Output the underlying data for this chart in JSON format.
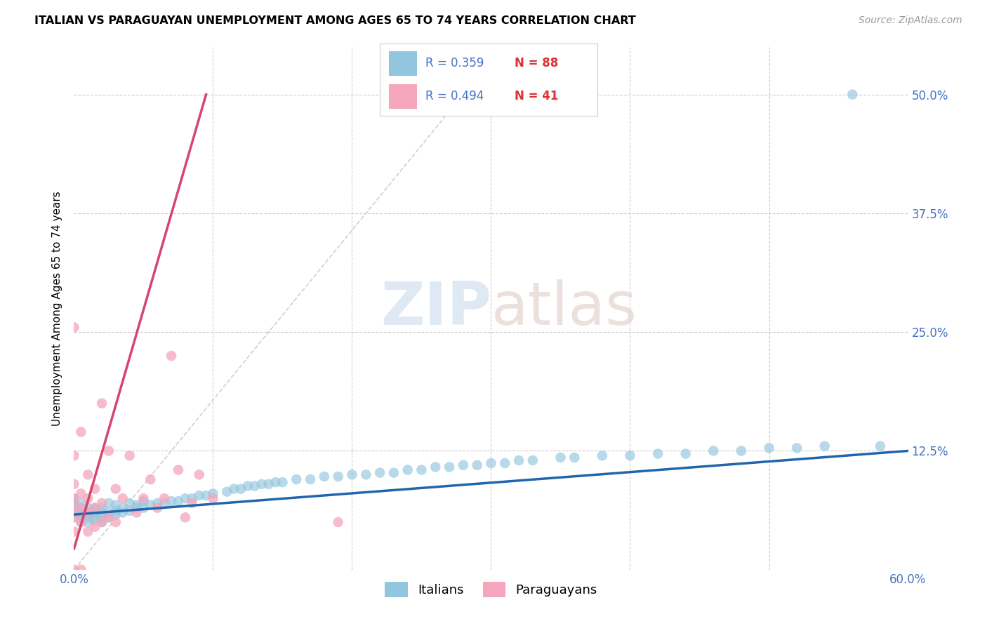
{
  "title": "ITALIAN VS PARAGUAYAN UNEMPLOYMENT AMONG AGES 65 TO 74 YEARS CORRELATION CHART",
  "source": "Source: ZipAtlas.com",
  "ylabel": "Unemployment Among Ages 65 to 74 years",
  "xlim": [
    0.0,
    0.6
  ],
  "ylim": [
    0.0,
    0.55
  ],
  "xticks": [
    0.0,
    0.1,
    0.2,
    0.3,
    0.4,
    0.5,
    0.6
  ],
  "xtick_labels": [
    "0.0%",
    "",
    "",
    "",
    "",
    "",
    "60.0%"
  ],
  "right_ytick_positions": [
    0.0,
    0.125,
    0.25,
    0.375,
    0.5
  ],
  "right_ytick_labels": [
    "",
    "12.5%",
    "25.0%",
    "37.5%",
    "50.0%"
  ],
  "italian_R": "0.359",
  "italian_N": "88",
  "paraguayan_R": "0.494",
  "paraguayan_N": "41",
  "italian_color": "#92c5de",
  "paraguayan_color": "#f4a6bc",
  "italian_line_color": "#2166ac",
  "paraguayan_line_color": "#d6456e",
  "legend_label_italian": "Italians",
  "legend_label_paraguayan": "Paraguayans",
  "italian_scatter_x": [
    0.0,
    0.0,
    0.0,
    0.0,
    0.0,
    0.005,
    0.005,
    0.005,
    0.005,
    0.005,
    0.005,
    0.01,
    0.01,
    0.01,
    0.01,
    0.01,
    0.015,
    0.015,
    0.015,
    0.015,
    0.02,
    0.02,
    0.02,
    0.02,
    0.025,
    0.025,
    0.025,
    0.03,
    0.03,
    0.03,
    0.035,
    0.035,
    0.04,
    0.04,
    0.045,
    0.045,
    0.05,
    0.05,
    0.055,
    0.06,
    0.065,
    0.07,
    0.075,
    0.08,
    0.085,
    0.09,
    0.095,
    0.1,
    0.11,
    0.115,
    0.12,
    0.125,
    0.13,
    0.135,
    0.14,
    0.145,
    0.15,
    0.16,
    0.17,
    0.18,
    0.19,
    0.2,
    0.21,
    0.22,
    0.23,
    0.24,
    0.25,
    0.26,
    0.27,
    0.28,
    0.29,
    0.3,
    0.31,
    0.32,
    0.33,
    0.35,
    0.36,
    0.38,
    0.4,
    0.42,
    0.44,
    0.46,
    0.48,
    0.5,
    0.52,
    0.54,
    0.56,
    0.58
  ],
  "italian_scatter_y": [
    0.06,
    0.065,
    0.07,
    0.055,
    0.075,
    0.055,
    0.06,
    0.065,
    0.07,
    0.05,
    0.058,
    0.05,
    0.055,
    0.06,
    0.065,
    0.058,
    0.055,
    0.06,
    0.065,
    0.052,
    0.055,
    0.06,
    0.065,
    0.05,
    0.055,
    0.06,
    0.07,
    0.058,
    0.062,
    0.068,
    0.06,
    0.065,
    0.062,
    0.07,
    0.065,
    0.068,
    0.065,
    0.072,
    0.068,
    0.07,
    0.07,
    0.072,
    0.072,
    0.075,
    0.075,
    0.078,
    0.078,
    0.08,
    0.082,
    0.085,
    0.085,
    0.088,
    0.088,
    0.09,
    0.09,
    0.092,
    0.092,
    0.095,
    0.095,
    0.098,
    0.098,
    0.1,
    0.1,
    0.102,
    0.102,
    0.105,
    0.105,
    0.108,
    0.108,
    0.11,
    0.11,
    0.112,
    0.112,
    0.115,
    0.115,
    0.118,
    0.118,
    0.12,
    0.12,
    0.122,
    0.122,
    0.125,
    0.125,
    0.128,
    0.128,
    0.13,
    0.5,
    0.13
  ],
  "paraguayan_scatter_x": [
    0.0,
    0.0,
    0.0,
    0.0,
    0.0,
    0.0,
    0.0,
    0.0,
    0.005,
    0.005,
    0.005,
    0.005,
    0.005,
    0.01,
    0.01,
    0.01,
    0.01,
    0.015,
    0.015,
    0.015,
    0.02,
    0.02,
    0.02,
    0.025,
    0.025,
    0.03,
    0.03,
    0.035,
    0.04,
    0.045,
    0.05,
    0.055,
    0.06,
    0.065,
    0.07,
    0.075,
    0.08,
    0.085,
    0.09,
    0.1,
    0.19
  ],
  "paraguayan_scatter_y": [
    0.0,
    0.04,
    0.055,
    0.065,
    0.075,
    0.09,
    0.12,
    0.255,
    0.0,
    0.05,
    0.065,
    0.08,
    0.145,
    0.04,
    0.06,
    0.075,
    0.1,
    0.045,
    0.065,
    0.085,
    0.05,
    0.07,
    0.175,
    0.055,
    0.125,
    0.05,
    0.085,
    0.075,
    0.12,
    0.06,
    0.075,
    0.095,
    0.065,
    0.075,
    0.225,
    0.105,
    0.055,
    0.07,
    0.1,
    0.075,
    0.05
  ],
  "italian_trendline_x": [
    0.0,
    0.6
  ],
  "italian_trendline_y": [
    0.058,
    0.125
  ],
  "paraguayan_trendline_x": [
    0.0,
    0.095
  ],
  "paraguayan_trendline_y": [
    0.022,
    0.5
  ],
  "diag_line_x": [
    0.0,
    0.28
  ],
  "diag_line_y": [
    0.0,
    0.5
  ]
}
